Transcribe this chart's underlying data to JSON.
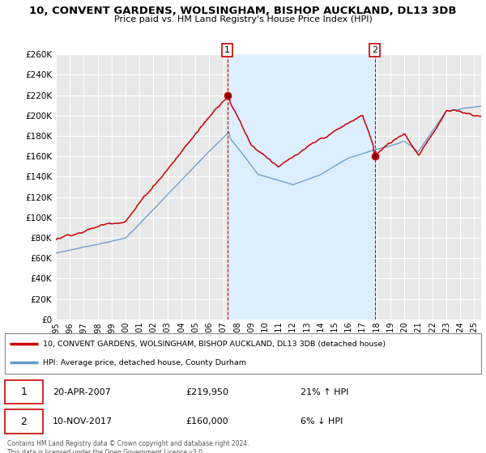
{
  "title": "10, CONVENT GARDENS, WOLSINGHAM, BISHOP AUCKLAND, DL13 3DB",
  "subtitle": "Price paid vs. HM Land Registry's House Price Index (HPI)",
  "ylim": [
    0,
    260000
  ],
  "yticks": [
    0,
    20000,
    40000,
    60000,
    80000,
    100000,
    120000,
    140000,
    160000,
    180000,
    200000,
    220000,
    240000,
    260000
  ],
  "background_color": "#ffffff",
  "plot_bg_color": "#e8e8e8",
  "grid_color": "#ffffff",
  "red_color": "#cc0000",
  "blue_color": "#6699cc",
  "shade_color": "#ddeeff",
  "marker1_value": 219950,
  "marker1_date": "20-APR-2007",
  "marker1_year": 2007.3,
  "marker1_pct": "21% ↑ HPI",
  "marker2_value": 160000,
  "marker2_date": "10-NOV-2017",
  "marker2_year": 2017.87,
  "marker2_pct": "6% ↓ HPI",
  "legend_line1": "10, CONVENT GARDENS, WOLSINGHAM, BISHOP AUCKLAND, DL13 3DB (detached house)",
  "legend_line2": "HPI: Average price, detached house, County Durham",
  "footnote": "Contains HM Land Registry data © Crown copyright and database right 2024.\nThis data is licensed under the Open Government Licence v3.0.",
  "xtick_years": [
    1995,
    1996,
    1997,
    1998,
    1999,
    2000,
    2001,
    2002,
    2003,
    2004,
    2005,
    2006,
    2007,
    2008,
    2009,
    2010,
    2011,
    2012,
    2013,
    2014,
    2015,
    2016,
    2017,
    2018,
    2019,
    2020,
    2021,
    2022,
    2023,
    2024,
    2025
  ]
}
